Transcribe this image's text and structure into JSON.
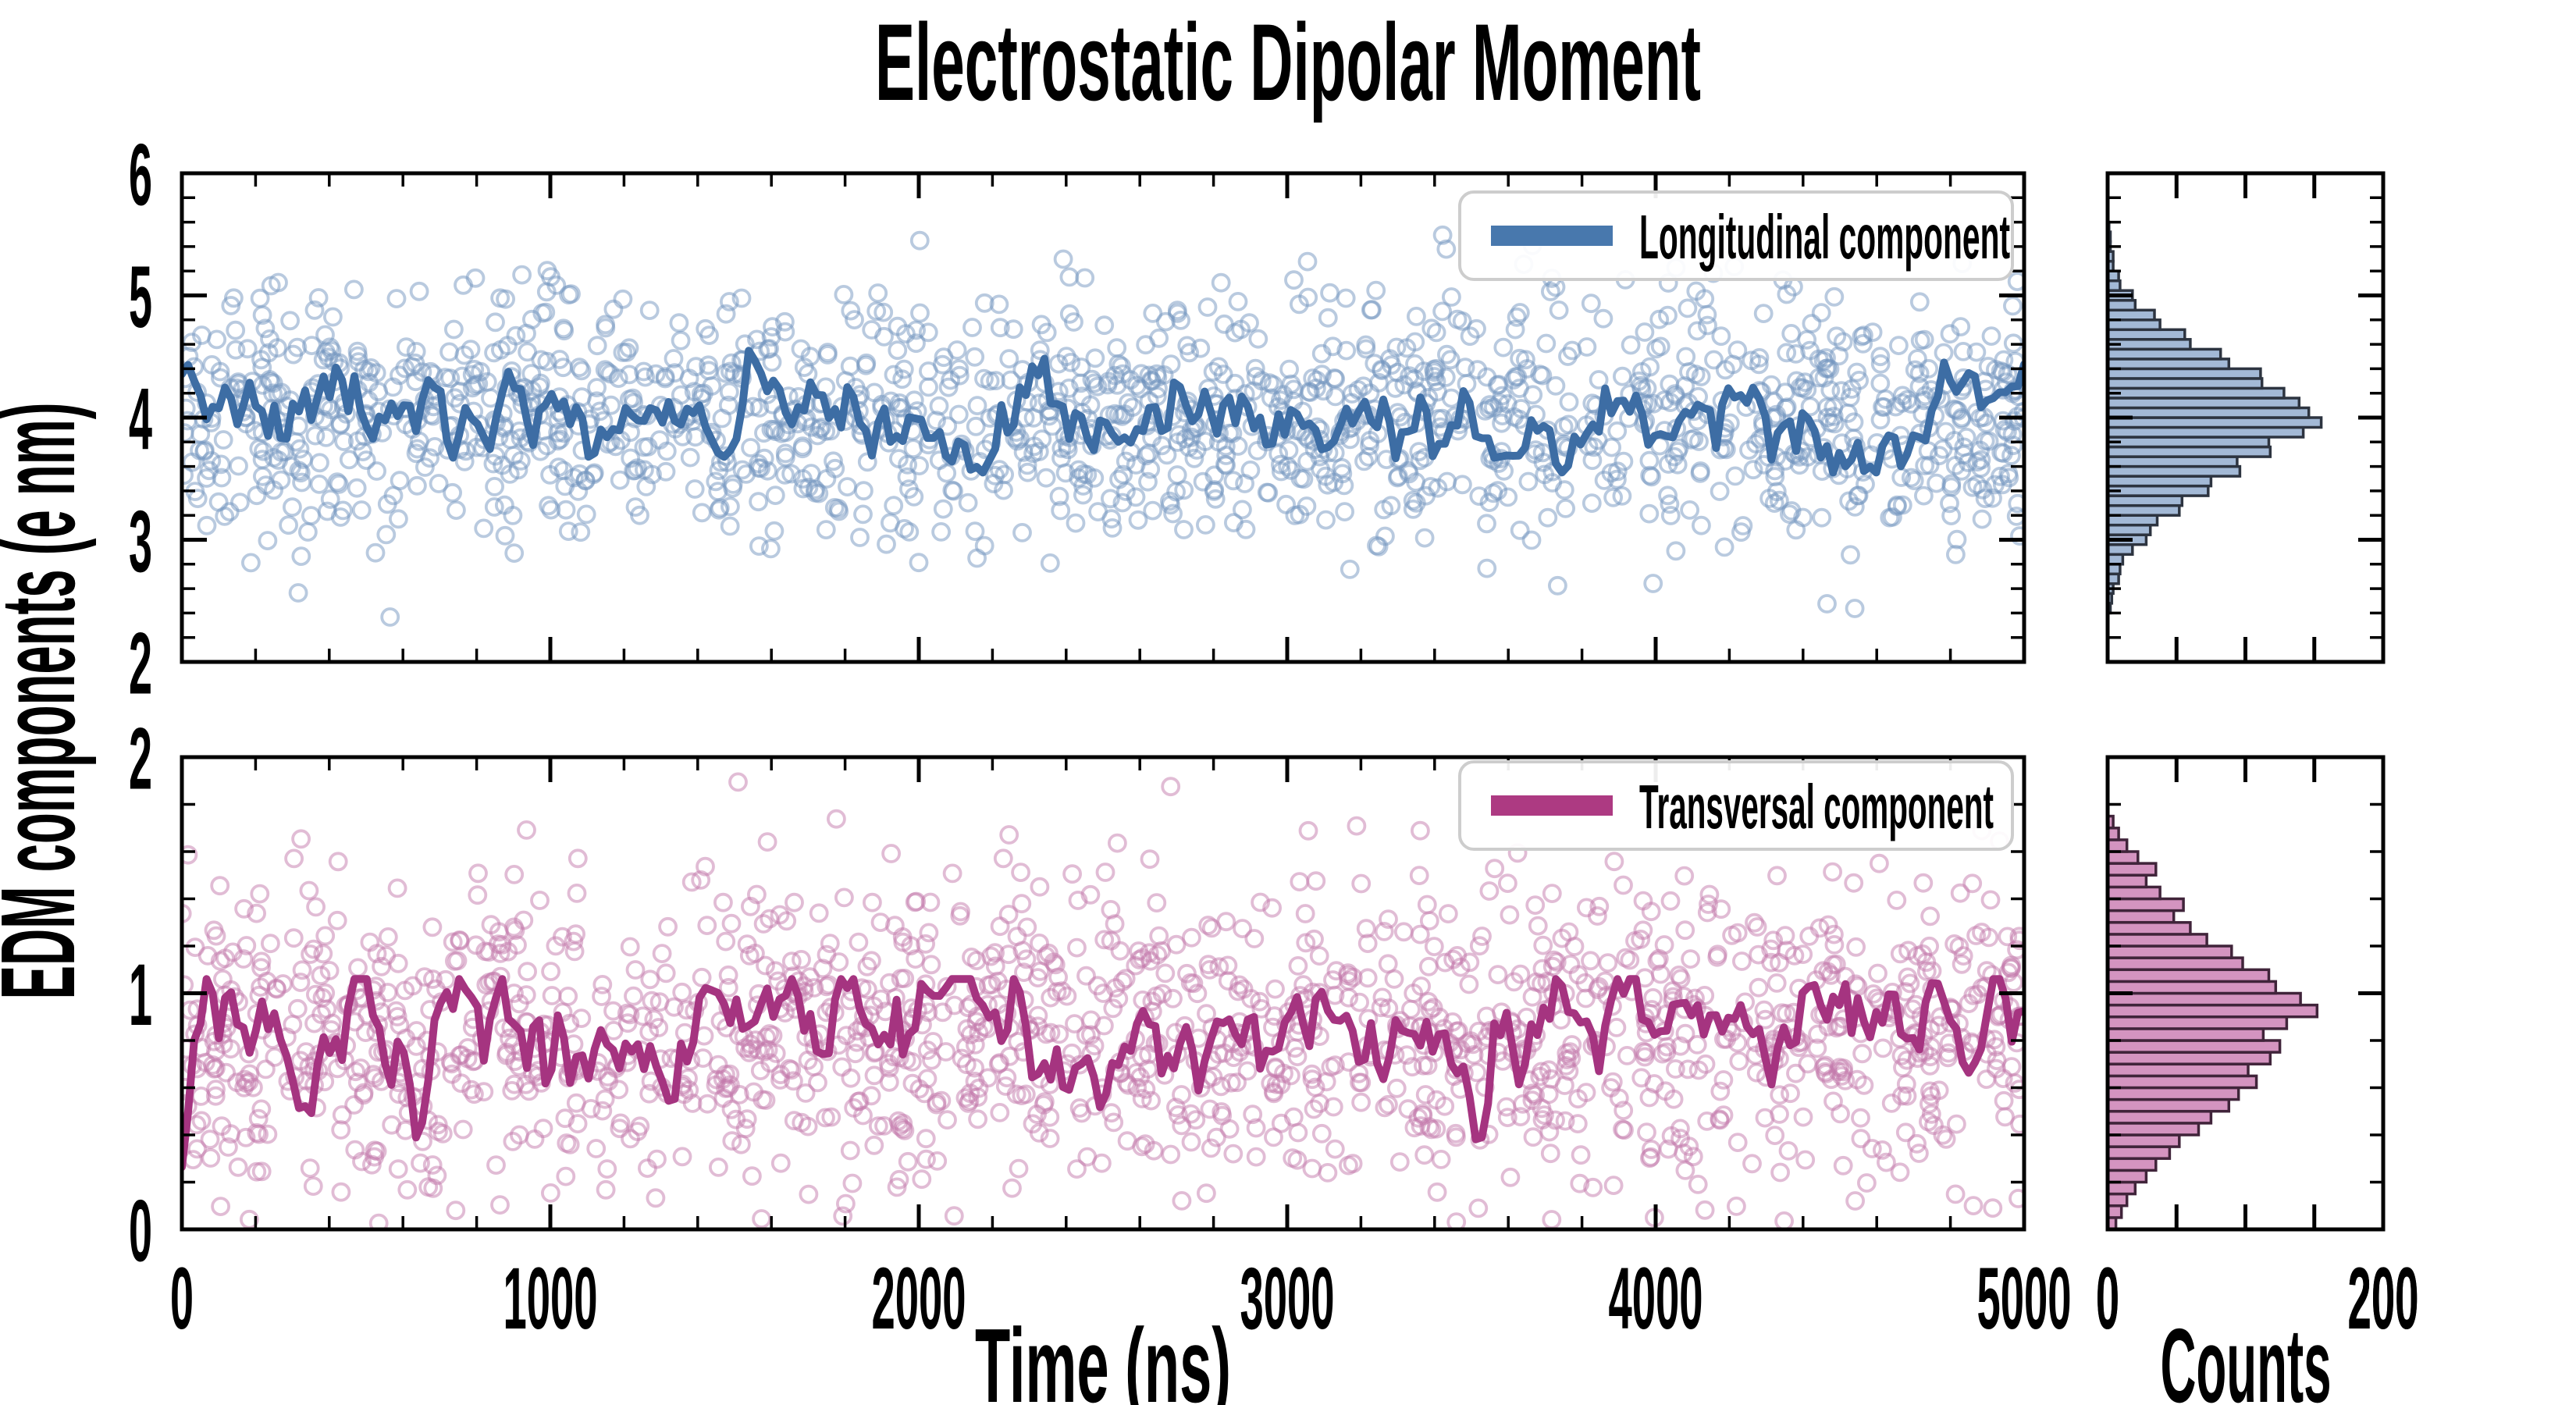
{
  "figure": {
    "title": "Electrostatic Dipolar Moment",
    "xlabel": "Time (ns)",
    "ylabel": "EDM components (e nm)",
    "hist_xlabel": "Counts",
    "background": "#ffffff",
    "text_color": "#000000"
  },
  "chart_data": [
    {
      "type": "scatter",
      "name": "longitudinal-scatter",
      "panel": "top",
      "legend": {
        "label": "Longitudinal component",
        "line_color": "#4878ad"
      },
      "x": {
        "lim": [
          0,
          5000
        ],
        "major_ticks": [
          0,
          1000,
          2000,
          3000,
          4000,
          5000
        ],
        "tick_labels": [
          "0",
          "1000",
          "2000",
          "3000",
          "4000",
          "5000"
        ],
        "minor_step": 200,
        "labels_visible": false
      },
      "y": {
        "lim": [
          2,
          6
        ],
        "major_ticks": [
          2,
          3,
          4,
          5,
          6
        ],
        "tick_labels": [
          "2",
          "3",
          "4",
          "5",
          "6"
        ],
        "minor_step": 0.2
      },
      "scatter": {
        "n": 1500,
        "mean": 4.0,
        "std": 0.52,
        "clip": [
          2.15,
          5.6
        ],
        "seed": 42,
        "color": "#7396c0",
        "opacity": 0.5,
        "radius": 10.5,
        "stroke_width": 3.8,
        "marker": "open-circle"
      },
      "trend_line": {
        "color": "#3d6da4",
        "width": 10,
        "n": 300,
        "mean": 4.0,
        "start": 3.9,
        "ar": 0.72,
        "noise": 0.155,
        "clip": [
          3.55,
          4.62
        ],
        "seed": 7
      }
    },
    {
      "type": "histogram",
      "name": "longitudinal-histogram",
      "panel": "top",
      "orientation": "horizontal",
      "x": {
        "label": "Counts",
        "lim": [
          0,
          200
        ],
        "major_ticks": [
          0,
          50,
          100,
          150,
          200
        ],
        "tick_labels": [
          "0",
          "",
          "",
          "",
          "200"
        ]
      },
      "bin_start": 2.4,
      "bin_width": 0.08,
      "counts": [
        2,
        3,
        4,
        8,
        9,
        11,
        18,
        28,
        31,
        36,
        52,
        54,
        73,
        75,
        96,
        94,
        118,
        117,
        142,
        155,
        146,
        139,
        128,
        112,
        111,
        88,
        82,
        60,
        56,
        38,
        34,
        20,
        18,
        9,
        8,
        4,
        4,
        2,
        2,
        1
      ],
      "fill": "#a3b9d6",
      "edge": "#2d3440"
    },
    {
      "type": "scatter",
      "name": "transversal-scatter",
      "panel": "bottom",
      "legend": {
        "label": "Transversal component",
        "line_color": "#ad3a82"
      },
      "x": {
        "lim": [
          0,
          5000
        ],
        "major_ticks": [
          0,
          1000,
          2000,
          3000,
          4000,
          5000
        ],
        "tick_labels": [
          "0",
          "1000",
          "2000",
          "3000",
          "4000",
          "5000"
        ],
        "minor_step": 200,
        "labels_visible": true
      },
      "y": {
        "lim": [
          0,
          2
        ],
        "major_ticks": [
          0,
          1,
          2
        ],
        "tick_labels": [
          "0",
          "1",
          "2"
        ],
        "minor_step": 0.2
      },
      "scatter": {
        "n": 1500,
        "mean": 0.82,
        "std": 0.34,
        "clip": [
          0.02,
          1.92
        ],
        "seed": 99,
        "color": "#c379ab",
        "opacity": 0.5,
        "radius": 10.5,
        "stroke_width": 3.8,
        "marker": "open-circle"
      },
      "trend_line": {
        "color": "#a53480",
        "width": 10,
        "n": 300,
        "mean": 0.8,
        "start": 0.15,
        "ar": 0.72,
        "noise": 0.1,
        "clip": [
          0.1,
          1.06
        ],
        "seed": 13
      }
    },
    {
      "type": "histogram",
      "name": "transversal-histogram",
      "panel": "bottom",
      "orientation": "horizontal",
      "x": {
        "label": "Counts",
        "lim": [
          0,
          200
        ],
        "major_ticks": [
          0,
          50,
          100,
          150,
          200
        ],
        "tick_labels": [
          "0",
          "",
          "",
          "",
          "200"
        ]
      },
      "bin_start": 0.0,
      "bin_width": 0.05,
      "counts": [
        6,
        10,
        14,
        20,
        28,
        35,
        45,
        52,
        66,
        75,
        88,
        95,
        108,
        102,
        118,
        125,
        113,
        130,
        152,
        140,
        122,
        117,
        98,
        90,
        72,
        60,
        48,
        55,
        38,
        28,
        35,
        22,
        14,
        8,
        4
      ],
      "fill": "#d494c0",
      "edge": "#40243a"
    }
  ]
}
